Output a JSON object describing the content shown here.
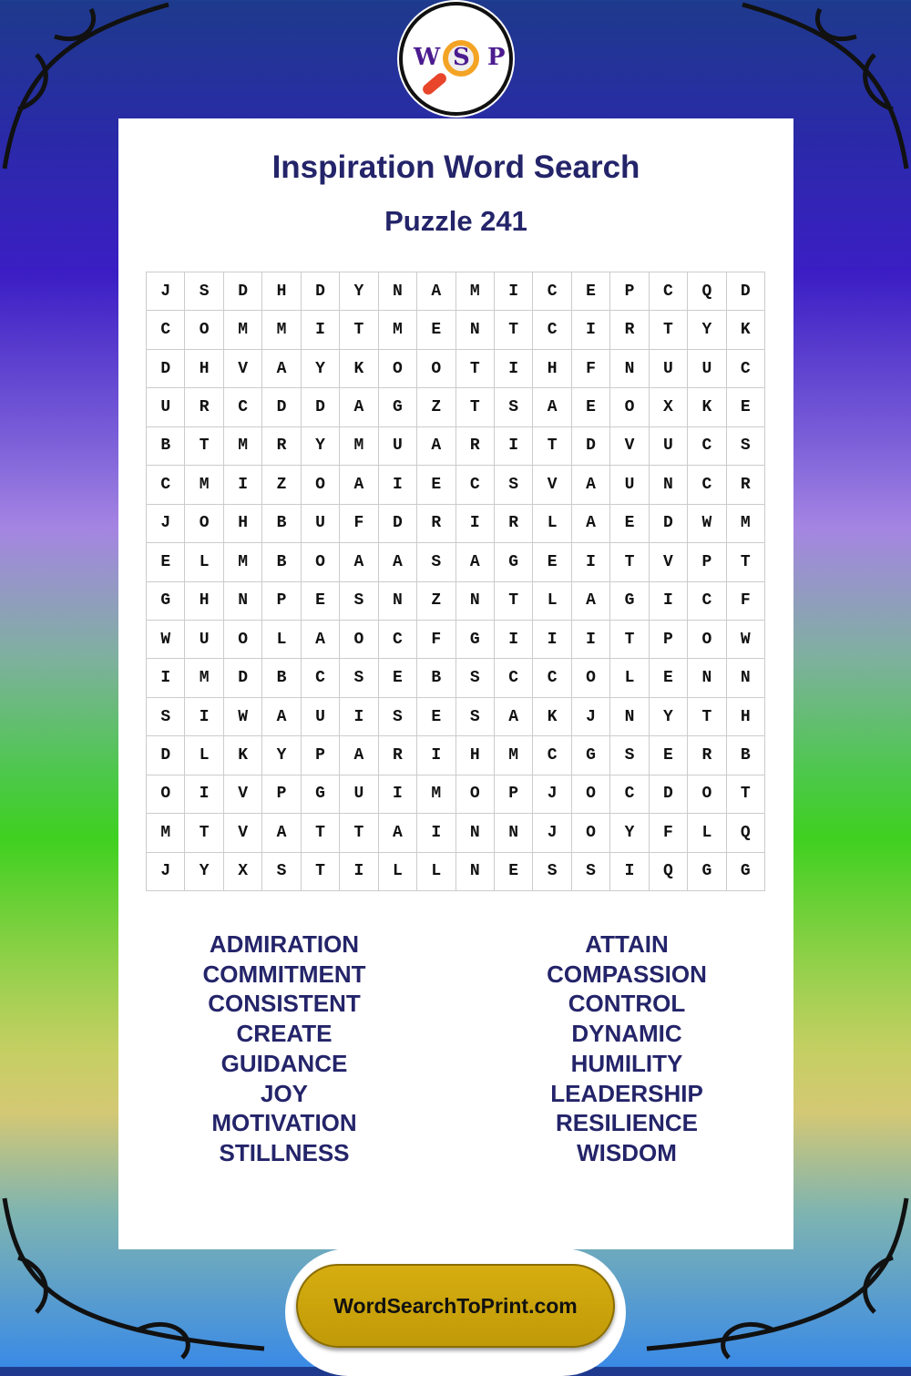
{
  "logo": {
    "letters": [
      "W",
      "S",
      "P"
    ],
    "colors": {
      "letters": "#4b1c8f",
      "lens": "#f4a424",
      "handle": "#e8452a"
    }
  },
  "title": "Inspiration Word Search",
  "subtitle": "Puzzle 241",
  "grid": [
    "JSDHDYNAMICEPCQD",
    "COMMITMENTCIRTYK",
    "DHVAYKOOTIHFNUUC",
    "URCDDAGZTSAEOXKE",
    "BTMRYMUARITDVUCS",
    "CMIZOAIECSVAUNCR",
    "JOHBUFDRIRLAEDWM",
    "ELMBOAASAGEITVPT",
    "GHNPESNZNTLAGICF",
    "WUOLAOCFGIIITPOW",
    "IMDBCSEBSCCOLENN",
    "SIWAUISESAKJNYTH",
    "DLKYPARIHMCGSERB",
    "OIVPGUIMOPJOCDOT",
    "MTVATTAINNJOYFLQ",
    "JYXSTILLNESSIQGG"
  ],
  "words_left": [
    "ADMIRATION",
    "COMMITMENT",
    "CONSISTENT",
    "CREATE",
    "GUIDANCE",
    "JOY",
    "MOTIVATION",
    "STILLNESS"
  ],
  "words_right": [
    "ATTAIN",
    "COMPASSION",
    "CONTROL",
    "DYNAMIC",
    "HUMILITY",
    "LEADERSHIP",
    "RESILIENCE",
    "WISDOM"
  ],
  "footer": "WordSearchToPrint.com",
  "colors": {
    "title": "#24246a",
    "button": "#d0a80e"
  }
}
